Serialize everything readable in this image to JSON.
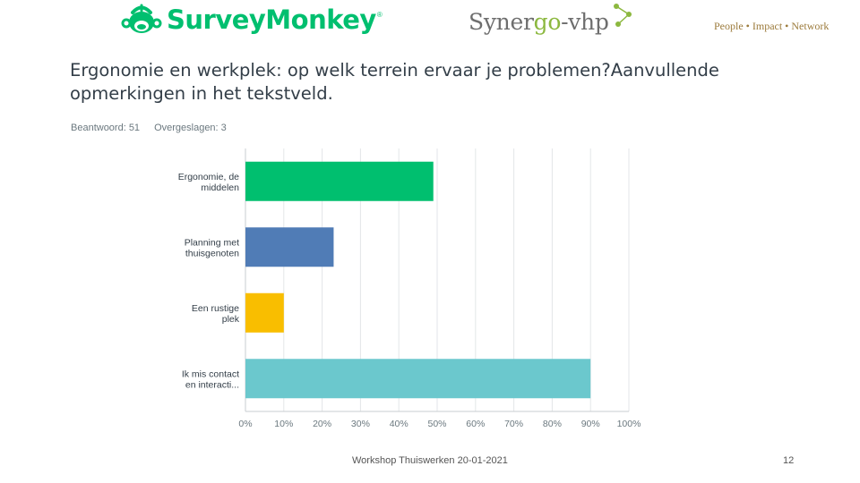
{
  "header": {
    "surveymonkey_logo": {
      "text": "SurveyMonkey",
      "registered": "®"
    },
    "synergo_logo": {
      "text_part1": "Syner",
      "text_part2": "go",
      "text_part3": "-vhp"
    },
    "tagline": "People • Impact • Network"
  },
  "question": {
    "title": "Ergonomie en werkplek: op welk terrein ervaar je problemen?Aanvullende opmerkingen in het tekstveld.",
    "answered": "Beantwoord: 51",
    "skipped": "Overgeslagen: 3"
  },
  "chart_data": {
    "type": "bar",
    "orientation": "horizontal",
    "categories": [
      [
        "Ergonomie, de",
        "middelen"
      ],
      [
        "Planning met",
        "thuisgenoten"
      ],
      [
        "Een rustige",
        "plek"
      ],
      [
        "Ik mis contact",
        "en interacti..."
      ]
    ],
    "values": [
      49,
      23,
      10,
      90
    ],
    "colors": [
      "#00bf6f",
      "#507cb6",
      "#f9be00",
      "#6bc8cd"
    ],
    "xlim": [
      0,
      100
    ],
    "x_ticks": [
      "0%",
      "10%",
      "20%",
      "30%",
      "40%",
      "50%",
      "60%",
      "70%",
      "80%",
      "90%",
      "100%"
    ],
    "grid": true,
    "unit": "%"
  },
  "footer": {
    "text": "Workshop Thuiswerken 20-01-2021",
    "page": "12"
  }
}
